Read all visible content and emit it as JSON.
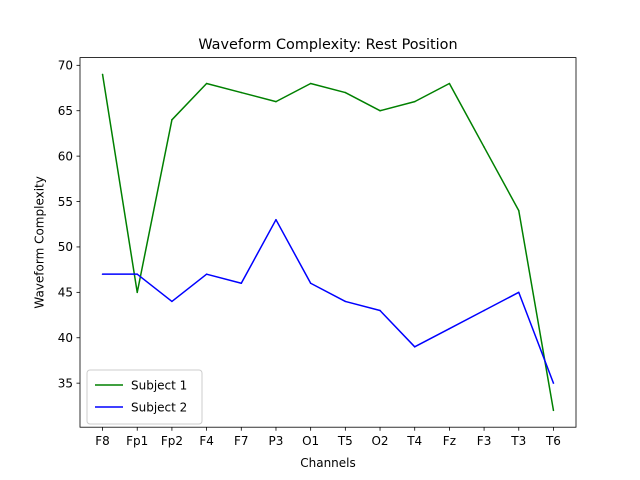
{
  "chart_data": {
    "type": "line",
    "title": "Waveform Complexity: Rest Position",
    "xlabel": "Channels",
    "ylabel": "Waveform Complexity",
    "categories": [
      "F8",
      "Fp1",
      "Fp2",
      "F4",
      "F7",
      "P3",
      "O1",
      "T5",
      "O2",
      "T4",
      "Fz",
      "F3",
      "T3",
      "T6"
    ],
    "ylim": [
      30.15,
      70.85
    ],
    "yticks": [
      35,
      40,
      45,
      50,
      55,
      60,
      65,
      70
    ],
    "grid": false,
    "legend_position": "lower-left",
    "series": [
      {
        "name": "Subject 1",
        "color": "#008000",
        "values": [
          69,
          45,
          64,
          68,
          67,
          66,
          68,
          67,
          65,
          66,
          68,
          61,
          54,
          32
        ]
      },
      {
        "name": "Subject 2",
        "color": "#0000ff",
        "values": [
          47,
          47,
          44,
          47,
          46,
          53,
          46,
          44,
          43,
          39,
          41,
          43,
          45,
          35
        ]
      }
    ]
  }
}
